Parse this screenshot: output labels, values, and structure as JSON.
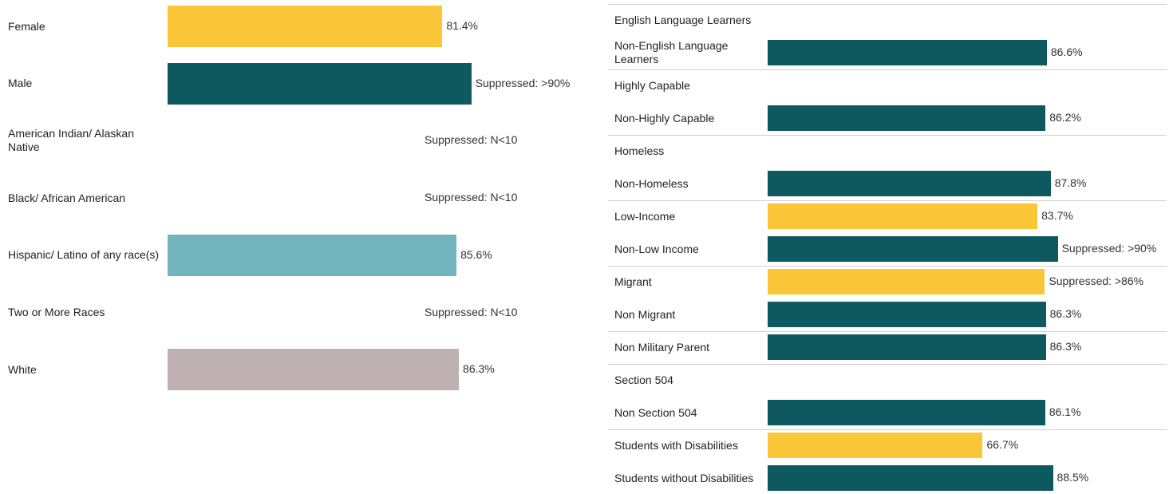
{
  "chart_data": [
    {
      "type": "bar",
      "categories": [
        "Female",
        "Male",
        "American Indian/ Alaskan Native",
        "Black/ African American",
        "Hispanic/ Latino of any race(s)",
        "Two or More Races",
        "White"
      ],
      "values": [
        81.4,
        90,
        null,
        null,
        85.6,
        null,
        86.3
      ],
      "value_labels": [
        "81.4%",
        "Suppressed: >90%",
        "Suppressed: N<10",
        "Suppressed: N<10",
        "85.6%",
        "Suppressed: N<10",
        "86.3%"
      ],
      "colors": [
        "#fbc638",
        "#0e5960",
        null,
        null,
        "#72b5bf",
        null,
        "#bfb0b1"
      ]
    },
    {
      "type": "bar",
      "categories": [
        "English Language Learners",
        "Non-English Language Learners",
        "Highly Capable",
        "Non-Highly Capable",
        "Homeless",
        "Non-Homeless",
        "Low-Income",
        "Non-Low Income",
        "Migrant",
        "Non Migrant",
        "Non Military Parent",
        "Section 504",
        "Non Section 504",
        "Students with Disabilities",
        "Students without Disabilities"
      ],
      "values": [
        null,
        86.6,
        null,
        86.2,
        null,
        87.8,
        83.7,
        90,
        86,
        86.3,
        86.3,
        null,
        86.1,
        66.7,
        88.5
      ],
      "value_labels": [
        null,
        "86.6%",
        null,
        "86.2%",
        null,
        "87.8%",
        "83.7%",
        "Suppressed: >90%",
        "Suppressed: >86%",
        "86.3%",
        "86.3%",
        null,
        "86.1%",
        "66.7%",
        "88.5%"
      ],
      "colors": [
        null,
        "#0e5960",
        null,
        "#0e5960",
        null,
        "#0e5960",
        "#fbc638",
        "#0e5960",
        "#fbc638",
        "#0e5960",
        "#0e5960",
        null,
        "#0e5960",
        "#fbc638",
        "#0e5960"
      ]
    }
  ]
}
